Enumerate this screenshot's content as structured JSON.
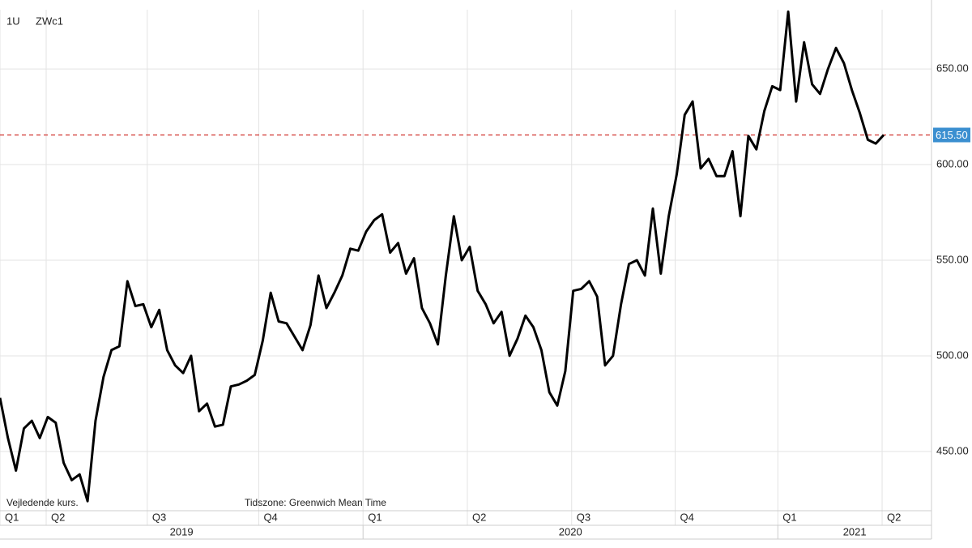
{
  "chart_data": {
    "type": "line",
    "header": [
      "1U",
      "ZWc1"
    ],
    "footer": [
      "Vejledende kurs.",
      "Tidszone: Greenwich Mean Time"
    ],
    "series": [
      {
        "name": "ZWc1",
        "color": "#000000",
        "values": [
          478,
          457,
          440,
          462,
          466,
          457,
          468,
          465,
          444,
          435,
          438,
          424,
          466,
          489,
          503,
          505,
          539,
          526,
          527,
          515,
          524,
          503,
          495,
          491,
          500,
          471,
          475,
          463,
          464,
          484,
          485,
          487,
          490,
          508,
          533,
          518,
          517,
          510,
          503,
          516,
          542,
          525,
          533,
          542,
          556,
          555,
          565,
          571,
          574,
          554,
          559,
          543,
          551,
          525,
          517,
          506,
          542,
          573,
          550,
          557,
          534,
          527,
          517,
          523,
          500,
          509,
          521,
          515,
          503,
          481,
          474,
          492,
          534,
          535,
          539,
          531,
          495,
          500,
          527,
          548,
          550,
          542,
          577,
          543,
          573,
          595,
          626,
          633,
          598,
          603,
          594,
          594,
          607,
          573,
          615,
          608,
          628,
          641,
          639,
          680,
          633,
          664,
          642,
          637,
          650,
          661,
          653,
          639,
          627,
          613,
          611,
          615.5
        ]
      }
    ],
    "last_price": {
      "value": 615.5,
      "label": "615.50",
      "color": "#d0312d",
      "tag_color": "#3b8fd0"
    },
    "xlim": [
      0,
      117
    ],
    "ylim": [
      419,
      681
    ],
    "yticks": [
      {
        "value": 450,
        "label": "450.00"
      },
      {
        "value": 500,
        "label": "500.00"
      },
      {
        "value": 550,
        "label": "550.00"
      },
      {
        "value": 600,
        "label": "600.00"
      },
      {
        "value": 650,
        "label": "650.00"
      }
    ],
    "xticks": [
      {
        "value": 0,
        "label": "Q1"
      },
      {
        "value": 5.8,
        "label": "Q2"
      },
      {
        "value": 18.5,
        "label": "Q3"
      },
      {
        "value": 32.5,
        "label": "Q4"
      },
      {
        "value": 45.6,
        "label": "Q1"
      },
      {
        "value": 58.7,
        "label": "Q2"
      },
      {
        "value": 71.8,
        "label": "Q3"
      },
      {
        "value": 84.8,
        "label": "Q4"
      },
      {
        "value": 97.7,
        "label": "Q1"
      },
      {
        "value": 110.8,
        "label": "Q2"
      }
    ],
    "years": [
      {
        "value": 0,
        "label": "2019"
      },
      {
        "value": 45.6,
        "label": "2020"
      },
      {
        "value": 97.7,
        "label": "2021"
      }
    ],
    "grid": true
  }
}
